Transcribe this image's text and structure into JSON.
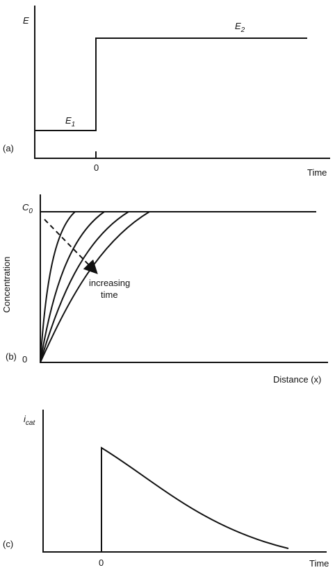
{
  "panel_a": {
    "label": "(a)",
    "y_label": {
      "symbol": "E"
    },
    "level_high": {
      "symbol": "E",
      "subscript": "2"
    },
    "level_low": {
      "symbol": "E",
      "subscript": "1"
    },
    "x_zero": "0",
    "x_label": "Time"
  },
  "panel_b": {
    "label": "(b)",
    "y_label": "Concentration",
    "y_top": {
      "symbol": "C",
      "subscript": "0"
    },
    "y_zero": "0",
    "annotation": [
      "increasing",
      "time"
    ],
    "x_label": "Distance (x)"
  },
  "panel_c": {
    "label": "(c)",
    "y_label": {
      "symbol": "i",
      "subscript": "cat"
    },
    "x_zero": "0",
    "x_label": "Time"
  }
}
